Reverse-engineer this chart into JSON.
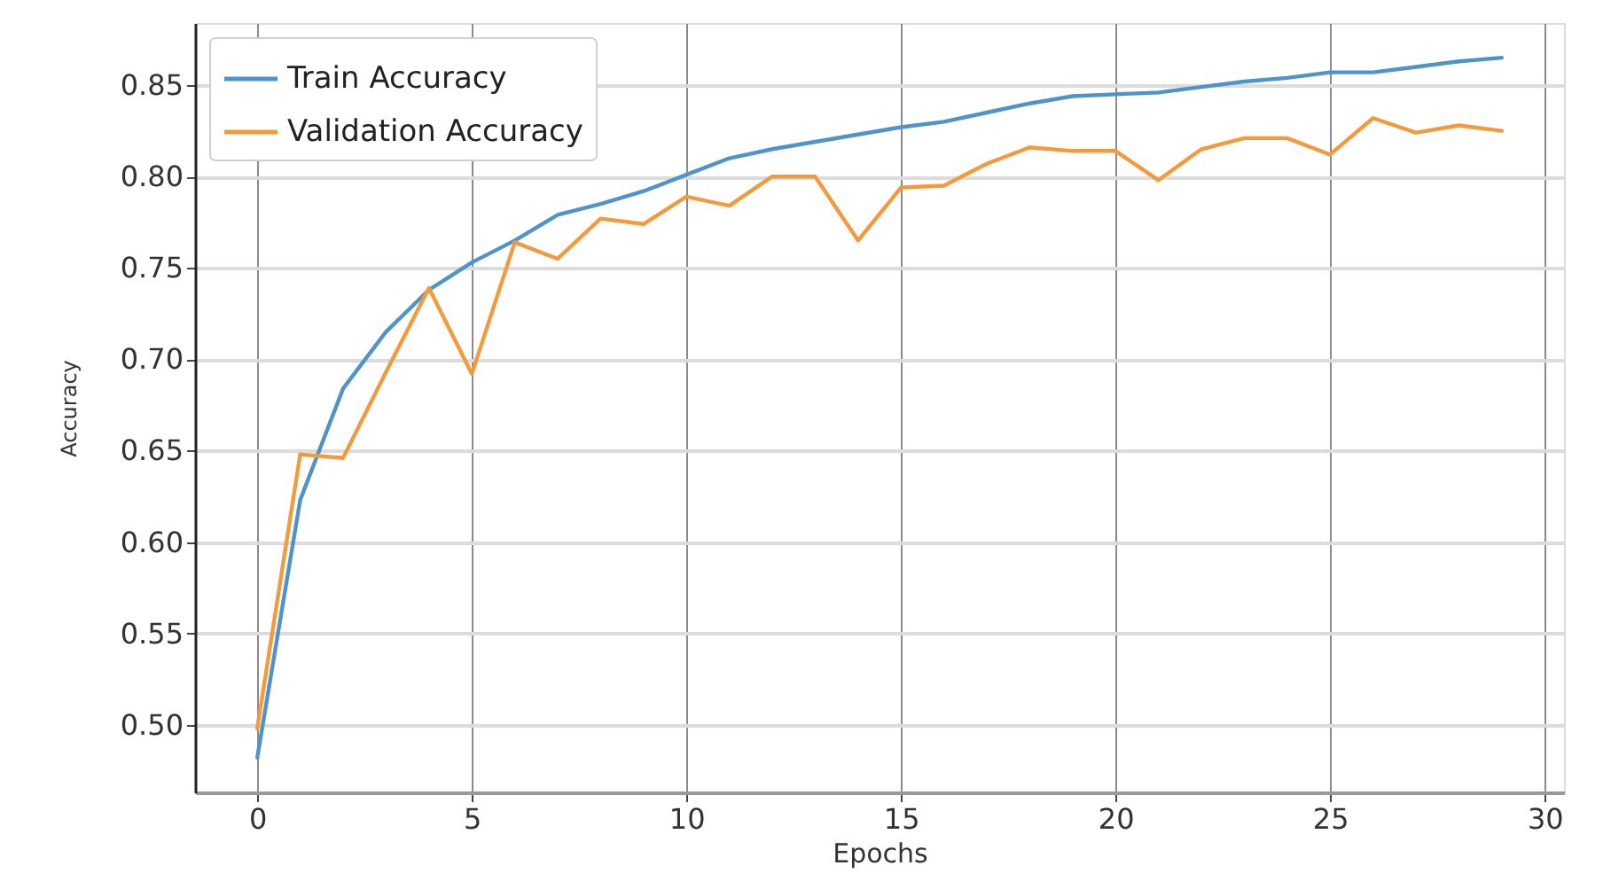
{
  "chart_data": {
    "type": "line",
    "xlabel": "Epochs",
    "ylabel": "Accuracy",
    "x": [
      0,
      1,
      2,
      3,
      4,
      5,
      6,
      7,
      8,
      9,
      10,
      11,
      12,
      13,
      14,
      15,
      16,
      17,
      18,
      19,
      20,
      21,
      22,
      23,
      24,
      25,
      26,
      27,
      28,
      29
    ],
    "xlim": [
      -1.45,
      30.45
    ],
    "xticks": [
      0,
      5,
      10,
      15,
      20,
      25,
      30
    ],
    "ylim": [
      0.463,
      0.884
    ],
    "yticks": [
      {
        "value": 0.5,
        "label": "0.50"
      },
      0.55,
      {
        "value": 0.6,
        "label": "0.60"
      },
      0.65,
      {
        "value": 0.7,
        "label": "0.70"
      },
      0.75,
      {
        "value": 0.8,
        "label": "0.80"
      },
      0.85
    ],
    "series": [
      {
        "name": "Train Accuracy",
        "color": "#4e94c8",
        "values": [
          0.482,
          0.623,
          0.684,
          0.715,
          0.738,
          0.753,
          0.765,
          0.779,
          0.785,
          0.792,
          0.801,
          0.81,
          0.815,
          0.819,
          0.823,
          0.827,
          0.83,
          0.835,
          0.84,
          0.844,
          0.845,
          0.846,
          0.849,
          0.852,
          0.854,
          0.857,
          0.857,
          0.86,
          0.863,
          0.865
        ]
      },
      {
        "name": "Validation Accuracy",
        "color": "#f39a3c",
        "values": [
          0.498,
          0.648,
          0.646,
          0.693,
          0.739,
          0.692,
          0.764,
          0.755,
          0.777,
          0.774,
          0.789,
          0.784,
          0.8,
          0.8,
          0.765,
          0.794,
          0.795,
          0.807,
          0.816,
          0.814,
          0.814,
          0.798,
          0.815,
          0.821,
          0.821,
          0.812,
          0.832,
          0.824,
          0.828,
          0.825
        ]
      }
    ],
    "grid": true,
    "legend": "top left"
  }
}
